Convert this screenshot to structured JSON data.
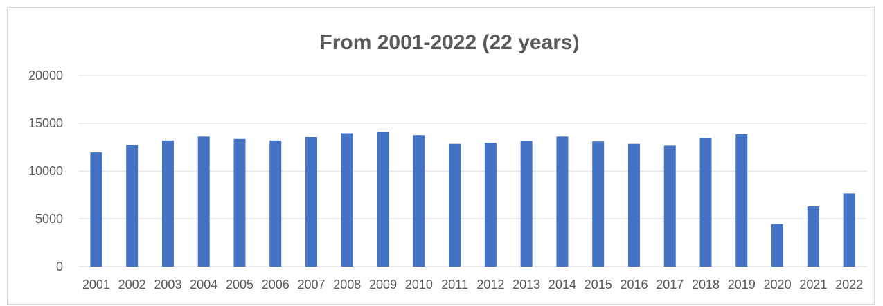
{
  "chart_data": {
    "type": "bar",
    "title": "From 2001-2022 (22 years)",
    "xlabel": "",
    "ylabel": "",
    "categories": [
      "2001",
      "2002",
      "2003",
      "2004",
      "2005",
      "2006",
      "2007",
      "2008",
      "2009",
      "2010",
      "2011",
      "2012",
      "2013",
      "2014",
      "2015",
      "2016",
      "2017",
      "2018",
      "2019",
      "2020",
      "2021",
      "2022"
    ],
    "values": [
      11950,
      12700,
      13200,
      13600,
      13350,
      13200,
      13550,
      13950,
      14100,
      13750,
      12850,
      12950,
      13150,
      13600,
      13100,
      12850,
      12650,
      13450,
      13850,
      4450,
      6300,
      7650
    ],
    "ylim": [
      0,
      20000
    ],
    "yticks": [
      0,
      5000,
      10000,
      15000,
      20000
    ],
    "grid": true,
    "legend": "none",
    "bar_color": "#4472c4"
  }
}
